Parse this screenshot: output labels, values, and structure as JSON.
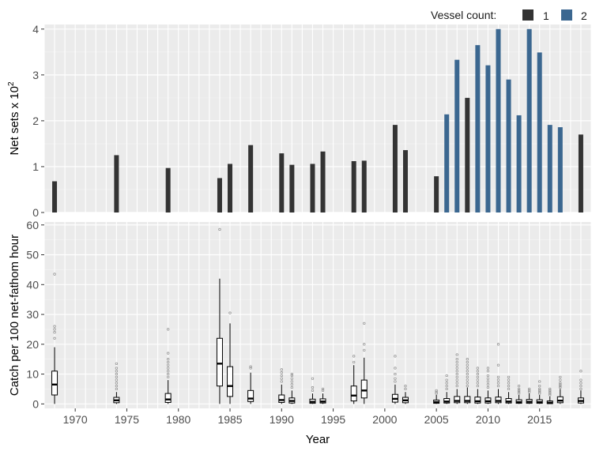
{
  "legend": {
    "title": "Vessel count:",
    "items": [
      {
        "label": "1",
        "color": "#333333"
      },
      {
        "label": "2",
        "color": "#3b6790"
      }
    ]
  },
  "chart_data": [
    {
      "type": "bar",
      "ylabel": "Net sets x 10",
      "ylabel_sup": "2",
      "ylim": [
        0,
        4.1
      ],
      "yticks": [
        0,
        1,
        2,
        3,
        4
      ],
      "xlim": [
        1967,
        2020
      ],
      "grid": true,
      "legend_position": "top-right",
      "series": [
        {
          "name": "1",
          "color": "#333333",
          "points": [
            [
              1968,
              0.68
            ],
            [
              1974,
              1.25
            ],
            [
              1979,
              0.97
            ],
            [
              1984,
              0.75
            ],
            [
              1985,
              1.06
            ],
            [
              1987,
              1.47
            ],
            [
              1990,
              1.29
            ],
            [
              1991,
              1.04
            ],
            [
              1993,
              1.06
            ],
            [
              1994,
              1.33
            ],
            [
              1997,
              1.12
            ],
            [
              1998,
              1.13
            ],
            [
              2001,
              1.91
            ],
            [
              2002,
              1.36
            ],
            [
              2005,
              0.79
            ],
            [
              2008,
              2.5
            ],
            [
              2019,
              1.7
            ]
          ]
        },
        {
          "name": "2",
          "color": "#3b6790",
          "points": [
            [
              2006,
              2.14
            ],
            [
              2007,
              3.33
            ],
            [
              2009,
              3.65
            ],
            [
              2010,
              3.21
            ],
            [
              2011,
              4.0
            ],
            [
              2012,
              2.9
            ],
            [
              2013,
              2.12
            ],
            [
              2014,
              4.0
            ],
            [
              2015,
              3.49
            ],
            [
              2016,
              1.91
            ],
            [
              2017,
              1.86
            ]
          ]
        }
      ]
    },
    {
      "type": "box",
      "ylabel": "Catch per 100 net-fathom hour",
      "xlabel": "Year",
      "ylim": [
        -1.5,
        61
      ],
      "yticks": [
        0,
        10,
        20,
        30,
        40,
        50,
        60
      ],
      "xlim": [
        1967,
        2020
      ],
      "xticks": [
        1970,
        1975,
        1980,
        1985,
        1990,
        1995,
        2000,
        2005,
        2010,
        2015
      ],
      "grid": true,
      "boxes": [
        {
          "x": 1968,
          "min": 0,
          "q1": 3,
          "median": 6.5,
          "q3": 11,
          "max": 19,
          "outliers": [
            22,
            24,
            25,
            26,
            43.5
          ]
        },
        {
          "x": 1974,
          "min": 0,
          "q1": 0.4,
          "median": 1.2,
          "q3": 2.2,
          "max": 4,
          "outliers": [
            5,
            6,
            7,
            8,
            9,
            10,
            11,
            12,
            13.5
          ]
        },
        {
          "x": 1979,
          "min": 0,
          "q1": 0.5,
          "median": 1.5,
          "q3": 3.5,
          "max": 8,
          "outliers": [
            9,
            10,
            11,
            12,
            13,
            14,
            15,
            17,
            25
          ]
        },
        {
          "x": 1984,
          "min": 0,
          "q1": 6,
          "median": 13.5,
          "q3": 22,
          "max": 42,
          "outliers": [
            58.5
          ]
        },
        {
          "x": 1985,
          "min": 0,
          "q1": 2.5,
          "median": 6,
          "q3": 12.5,
          "max": 27,
          "outliers": [
            30.5
          ]
        },
        {
          "x": 1987,
          "min": 0,
          "q1": 0.8,
          "median": 1.8,
          "q3": 4.5,
          "max": 10.5,
          "outliers": [
            12,
            12.5
          ]
        },
        {
          "x": 1990,
          "min": 0,
          "q1": 0.5,
          "median": 1.3,
          "q3": 3,
          "max": 6.5,
          "outliers": [
            7.5,
            8.5,
            9.5,
            10.5,
            11.5
          ]
        },
        {
          "x": 1991,
          "min": 0,
          "q1": 0.3,
          "median": 1,
          "q3": 2,
          "max": 4.5,
          "outliers": [
            5.5,
            6.5,
            7.5,
            8.5,
            9.5,
            10
          ]
        },
        {
          "x": 1993,
          "min": 0,
          "q1": 0.2,
          "median": 0.7,
          "q3": 1.6,
          "max": 3.5,
          "outliers": [
            4.5,
            5.5,
            8.5
          ]
        },
        {
          "x": 1994,
          "min": 0,
          "q1": 0.3,
          "median": 0.8,
          "q3": 1.7,
          "max": 3.5,
          "outliers": [
            4.5,
            5
          ]
        },
        {
          "x": 1997,
          "min": 0,
          "q1": 1,
          "median": 2.8,
          "q3": 6,
          "max": 13,
          "outliers": [
            14,
            16
          ]
        },
        {
          "x": 1998,
          "min": 0,
          "q1": 2,
          "median": 4.5,
          "q3": 8,
          "max": 15.5,
          "outliers": [
            18,
            20,
            27
          ]
        },
        {
          "x": 2001,
          "min": 0,
          "q1": 0.6,
          "median": 1.7,
          "q3": 3.2,
          "max": 6.5,
          "outliers": [
            7.5,
            8.5,
            10,
            12,
            16
          ]
        },
        {
          "x": 2002,
          "min": 0,
          "q1": 0.4,
          "median": 1.2,
          "q3": 2.2,
          "max": 4,
          "outliers": [
            5,
            6
          ]
        },
        {
          "x": 2005,
          "min": 0,
          "q1": 0.2,
          "median": 0.6,
          "q3": 1.3,
          "max": 3,
          "outliers": [
            3.5,
            4,
            4.5
          ]
        },
        {
          "x": 2006,
          "min": 0,
          "q1": 0.3,
          "median": 0.8,
          "q3": 1.8,
          "max": 4,
          "outliers": [
            5,
            6,
            7,
            8,
            9.5
          ]
        },
        {
          "x": 2007,
          "min": 0,
          "q1": 0.4,
          "median": 1,
          "q3": 2.5,
          "max": 5,
          "outliers": [
            6,
            7,
            8,
            9,
            10,
            11,
            12,
            13,
            14,
            15,
            16.5
          ]
        },
        {
          "x": 2008,
          "min": 0,
          "q1": 0.4,
          "median": 1,
          "q3": 2.5,
          "max": 5.5,
          "outliers": [
            6,
            7,
            8,
            9,
            10,
            11,
            12,
            13,
            14,
            15
          ]
        },
        {
          "x": 2009,
          "min": 0,
          "q1": 0.3,
          "median": 0.9,
          "q3": 2.3,
          "max": 5,
          "outliers": [
            6,
            7,
            8,
            9,
            10,
            11,
            12
          ]
        },
        {
          "x": 2010,
          "min": 0,
          "q1": 0.3,
          "median": 0.9,
          "q3": 2,
          "max": 4.5,
          "outliers": [
            5.5,
            6.5,
            7.5,
            8.5,
            9.5,
            11,
            12
          ]
        },
        {
          "x": 2011,
          "min": 0,
          "q1": 0.4,
          "median": 1,
          "q3": 2.3,
          "max": 5,
          "outliers": [
            6,
            7,
            8,
            9,
            13,
            20
          ]
        },
        {
          "x": 2012,
          "min": 0,
          "q1": 0.3,
          "median": 0.8,
          "q3": 1.8,
          "max": 4,
          "outliers": [
            5,
            6,
            7,
            8,
            9
          ]
        },
        {
          "x": 2013,
          "min": 0,
          "q1": 0.2,
          "median": 0.6,
          "q3": 1.4,
          "max": 3,
          "outliers": [
            3.5,
            4,
            4.5,
            5,
            6
          ]
        },
        {
          "x": 2014,
          "min": 0,
          "q1": 0.2,
          "median": 0.7,
          "q3": 1.5,
          "max": 3.5,
          "outliers": [
            4,
            4.5,
            5
          ]
        },
        {
          "x": 2015,
          "min": 0,
          "q1": 0.2,
          "median": 0.6,
          "q3": 1.4,
          "max": 3,
          "outliers": [
            3.5,
            4,
            4.5,
            5,
            6,
            7.5
          ]
        },
        {
          "x": 2016,
          "min": 0,
          "q1": 0.1,
          "median": 0.4,
          "q3": 1,
          "max": 2.5,
          "outliers": [
            3,
            3.5,
            4,
            4.5,
            5
          ]
        },
        {
          "x": 2017,
          "min": 0,
          "q1": 0.4,
          "median": 1.1,
          "q3": 2.4,
          "max": 5,
          "outliers": [
            5.5,
            6,
            6.5,
            7,
            8,
            9
          ]
        },
        {
          "x": 2019,
          "min": 0,
          "q1": 0.3,
          "median": 1,
          "q3": 2,
          "max": 4.5,
          "outliers": [
            5,
            6,
            7,
            8,
            11
          ]
        }
      ]
    }
  ]
}
